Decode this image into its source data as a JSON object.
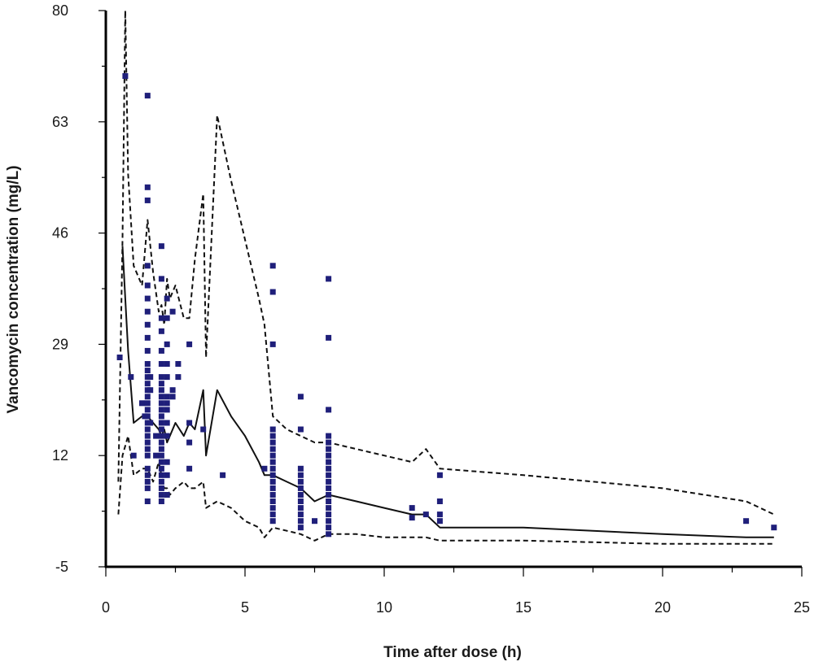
{
  "chart_data": {
    "type": "scatter",
    "title": "",
    "xlabel": "Time after dose (h)",
    "ylabel": "Vancomycin concentration (mg/L)",
    "xlim": [
      0,
      25
    ],
    "ylim": [
      -5,
      80
    ],
    "x_ticks": [
      0,
      5,
      10,
      15,
      20,
      25
    ],
    "y_ticks": [
      -5,
      12,
      29,
      46,
      63,
      80
    ],
    "x_tick_labels": [
      "0",
      "5",
      "10",
      "15",
      "20",
      "25"
    ],
    "y_tick_labels": [
      "-5",
      "12",
      "29",
      "46",
      "63",
      "80"
    ],
    "grid": false,
    "legend": "none",
    "colors": {
      "points": "#1f1f7a",
      "lines": "#111111",
      "axis": "#000000"
    },
    "points": [
      [
        0.5,
        27
      ],
      [
        0.7,
        70
      ],
      [
        0.9,
        24
      ],
      [
        1.0,
        12
      ],
      [
        1.3,
        20
      ],
      [
        1.4,
        18
      ],
      [
        1.5,
        67
      ],
      [
        1.5,
        53
      ],
      [
        1.5,
        51
      ],
      [
        1.5,
        41
      ],
      [
        1.5,
        38
      ],
      [
        1.5,
        36
      ],
      [
        1.5,
        34
      ],
      [
        1.5,
        32
      ],
      [
        1.5,
        30
      ],
      [
        1.5,
        28
      ],
      [
        1.5,
        26
      ],
      [
        1.5,
        25
      ],
      [
        1.5,
        24
      ],
      [
        1.5,
        23
      ],
      [
        1.5,
        22
      ],
      [
        1.5,
        21
      ],
      [
        1.5,
        20
      ],
      [
        1.5,
        19
      ],
      [
        1.5,
        18
      ],
      [
        1.5,
        17
      ],
      [
        1.5,
        16
      ],
      [
        1.5,
        15
      ],
      [
        1.5,
        14
      ],
      [
        1.5,
        13
      ],
      [
        1.5,
        12
      ],
      [
        1.5,
        10
      ],
      [
        1.5,
        9
      ],
      [
        1.5,
        8
      ],
      [
        1.5,
        7
      ],
      [
        1.5,
        5
      ],
      [
        1.6,
        24
      ],
      [
        1.6,
        22
      ],
      [
        1.6,
        17
      ],
      [
        1.8,
        15
      ],
      [
        1.8,
        12
      ],
      [
        2.0,
        44
      ],
      [
        2.0,
        39
      ],
      [
        2.0,
        33
      ],
      [
        2.0,
        31
      ],
      [
        2.0,
        28
      ],
      [
        2.0,
        26
      ],
      [
        2.0,
        24
      ],
      [
        2.0,
        23
      ],
      [
        2.0,
        22
      ],
      [
        2.0,
        21
      ],
      [
        2.0,
        20
      ],
      [
        2.0,
        19
      ],
      [
        2.0,
        18
      ],
      [
        2.0,
        17
      ],
      [
        2.0,
        16
      ],
      [
        2.0,
        15
      ],
      [
        2.0,
        14
      ],
      [
        2.0,
        13
      ],
      [
        2.0,
        12
      ],
      [
        2.0,
        11
      ],
      [
        2.0,
        10
      ],
      [
        2.0,
        9
      ],
      [
        2.0,
        8
      ],
      [
        2.0,
        7
      ],
      [
        2.0,
        6
      ],
      [
        2.0,
        5
      ],
      [
        2.2,
        36
      ],
      [
        2.2,
        33
      ],
      [
        2.2,
        29
      ],
      [
        2.2,
        26
      ],
      [
        2.2,
        24
      ],
      [
        2.2,
        21
      ],
      [
        2.2,
        20
      ],
      [
        2.2,
        19
      ],
      [
        2.2,
        17
      ],
      [
        2.2,
        15
      ],
      [
        2.2,
        11
      ],
      [
        2.2,
        9
      ],
      [
        2.2,
        6
      ],
      [
        2.4,
        34
      ],
      [
        2.4,
        22
      ],
      [
        2.4,
        21
      ],
      [
        2.6,
        24
      ],
      [
        2.6,
        26
      ],
      [
        3.0,
        29
      ],
      [
        3.0,
        17
      ],
      [
        3.0,
        14
      ],
      [
        3.0,
        10
      ],
      [
        3.5,
        16
      ],
      [
        4.2,
        9
      ],
      [
        5.7,
        10
      ],
      [
        6.0,
        41
      ],
      [
        6.0,
        37
      ],
      [
        6.0,
        29
      ],
      [
        6.0,
        16
      ],
      [
        6.0,
        15
      ],
      [
        6.0,
        14
      ],
      [
        6.0,
        13
      ],
      [
        6.0,
        12
      ],
      [
        6.0,
        11
      ],
      [
        6.0,
        10
      ],
      [
        6.0,
        9
      ],
      [
        6.0,
        8
      ],
      [
        6.0,
        7
      ],
      [
        6.0,
        6
      ],
      [
        6.0,
        5
      ],
      [
        6.0,
        4
      ],
      [
        6.0,
        3
      ],
      [
        6.0,
        2
      ],
      [
        7.0,
        21
      ],
      [
        7.0,
        16
      ],
      [
        7.0,
        10
      ],
      [
        7.0,
        9
      ],
      [
        7.0,
        8
      ],
      [
        7.0,
        7
      ],
      [
        7.0,
        6
      ],
      [
        7.0,
        5
      ],
      [
        7.0,
        4
      ],
      [
        7.0,
        3
      ],
      [
        7.0,
        2
      ],
      [
        7.0,
        1
      ],
      [
        7.5,
        2
      ],
      [
        8.0,
        39
      ],
      [
        8.0,
        30
      ],
      [
        8.0,
        19
      ],
      [
        8.0,
        15
      ],
      [
        8.0,
        14
      ],
      [
        8.0,
        13
      ],
      [
        8.0,
        12
      ],
      [
        8.0,
        11
      ],
      [
        8.0,
        10
      ],
      [
        8.0,
        9
      ],
      [
        8.0,
        8
      ],
      [
        8.0,
        7
      ],
      [
        8.0,
        6
      ],
      [
        8.0,
        5
      ],
      [
        8.0,
        4
      ],
      [
        8.0,
        3
      ],
      [
        8.0,
        2
      ],
      [
        8.0,
        1
      ],
      [
        8.0,
        0
      ],
      [
        11.0,
        4
      ],
      [
        11.0,
        2.5
      ],
      [
        11.5,
        3
      ],
      [
        12.0,
        9
      ],
      [
        12.0,
        5
      ],
      [
        12.0,
        3
      ],
      [
        12.0,
        2
      ],
      [
        23.0,
        2
      ],
      [
        24.0,
        1
      ]
    ],
    "series": [
      {
        "style": "solid",
        "x": [
          0.6,
          0.7,
          0.8,
          1.0,
          1.3,
          1.5,
          1.7,
          1.9,
          2.0,
          2.1,
          2.2,
          2.3,
          2.5,
          2.8,
          3.0,
          3.2,
          3.5,
          3.6,
          4.0,
          4.5,
          5.0,
          5.5,
          5.7,
          6.0,
          6.5,
          7.0,
          7.5,
          8.0,
          9.0,
          10.0,
          11.0,
          11.5,
          12.0,
          15.0,
          20.0,
          23.0,
          24.0
        ],
        "y": [
          44,
          36,
          28,
          17,
          18,
          18,
          17,
          16,
          15,
          16,
          14,
          15,
          17,
          15,
          17,
          16,
          22,
          12,
          22,
          18,
          15,
          11,
          9,
          9,
          8,
          7,
          5,
          6,
          5,
          4,
          3,
          3,
          1,
          1,
          0,
          -0.5,
          -0.5
        ]
      },
      {
        "style": "dashed",
        "x": [
          0.45,
          0.6,
          0.7,
          0.8,
          1.0,
          1.3,
          1.5,
          1.7,
          1.9,
          2.0,
          2.1,
          2.2,
          2.3,
          2.5,
          2.8,
          3.0,
          3.2,
          3.5,
          3.6,
          4.0,
          4.5,
          5.0,
          5.5,
          5.7,
          6.0,
          6.5,
          7.0,
          7.5,
          8.0,
          9.0,
          10.0,
          11.0,
          11.5,
          12.0,
          15.0,
          20.0,
          23.0,
          24.0
        ],
        "y": [
          8,
          45,
          80,
          55,
          41,
          38,
          48,
          40,
          34,
          35,
          32,
          39,
          36,
          38,
          33,
          33,
          42,
          52,
          27,
          64,
          54,
          45,
          36,
          32,
          18,
          16,
          15,
          14,
          14,
          13,
          12,
          11,
          13,
          10,
          9,
          7,
          5,
          3
        ]
      },
      {
        "style": "dashed",
        "x": [
          0.45,
          0.6,
          0.8,
          1.0,
          1.3,
          1.5,
          1.7,
          1.9,
          2.0,
          2.1,
          2.2,
          2.3,
          2.5,
          2.8,
          3.0,
          3.2,
          3.5,
          3.6,
          4.0,
          4.5,
          5.0,
          5.5,
          5.7,
          6.0,
          6.5,
          7.0,
          7.5,
          8.0,
          9.0,
          10.0,
          11.0,
          11.5,
          12.0,
          15.0,
          20.0,
          23.0,
          24.0
        ],
        "y": [
          3,
          12,
          15,
          9,
          10,
          10,
          8,
          11,
          9,
          7,
          7,
          6,
          7,
          8,
          7,
          7,
          8,
          4,
          5,
          4,
          2,
          1,
          -0.5,
          1,
          0.5,
          0,
          -1,
          0,
          0,
          -0.5,
          -0.5,
          -0.5,
          -1,
          -1,
          -1.5,
          -1.5,
          -1.5
        ]
      }
    ]
  }
}
